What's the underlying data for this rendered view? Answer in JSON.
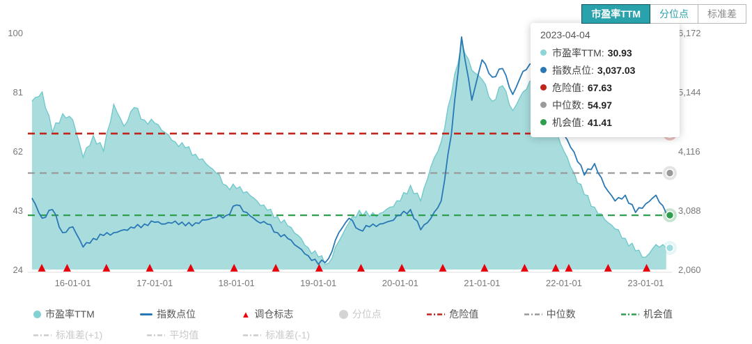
{
  "tabs": [
    {
      "label": "市盈率TTM",
      "active": true
    },
    {
      "label": "分位点",
      "active": false
    },
    {
      "label": "标准差",
      "active": false
    }
  ],
  "tooltip": {
    "date": "2023-04-04",
    "rows": [
      {
        "label": "市盈率TTM:",
        "value": "30.93",
        "color": "#8ed5d8"
      },
      {
        "label": "指数点位:",
        "value": "3,037.03",
        "color": "#2878b5"
      },
      {
        "label": "危险值:",
        "value": "67.63",
        "color": "#c0251c"
      },
      {
        "label": "中位数:",
        "value": "54.97",
        "color": "#9a9a9a"
      },
      {
        "label": "机会值:",
        "value": "41.41",
        "color": "#2f9e4f"
      }
    ]
  },
  "legend": {
    "row1": [
      {
        "label": "市盈率TTM",
        "marker": "circle",
        "color": "#84d1d4",
        "disabled": false
      },
      {
        "label": "指数点位",
        "marker": "line",
        "color": "#2878b5",
        "disabled": false
      },
      {
        "label": "调仓标志",
        "marker": "triangle",
        "color": "#e8000d",
        "disabled": false
      },
      {
        "label": "分位点",
        "marker": "circle",
        "color": "#d4d4d4",
        "disabled": true
      },
      {
        "label": "危险值",
        "marker": "dashdot",
        "color": "#c0251c",
        "disabled": false
      },
      {
        "label": "中位数",
        "marker": "dashdot",
        "color": "#9a9a9a",
        "disabled": false
      },
      {
        "label": "机会值",
        "marker": "dashdot",
        "color": "#2f9e4f",
        "disabled": false
      }
    ],
    "row2": [
      {
        "label": "标准差(+1)",
        "marker": "dashdot",
        "color": "#cccccc",
        "disabled": true
      },
      {
        "label": "平均值",
        "marker": "dashdot",
        "color": "#cccccc",
        "disabled": true
      },
      {
        "label": "标准差(-1)",
        "marker": "dashdot",
        "color": "#cccccc",
        "disabled": true
      }
    ]
  },
  "chart_data": {
    "type": "area+line",
    "x_range": [
      2015.45,
      2023.32
    ],
    "x_ticks": [
      {
        "t": 2016,
        "label": "16-01-01"
      },
      {
        "t": 2017,
        "label": "17-01-01"
      },
      {
        "t": 2018,
        "label": "18-01-01"
      },
      {
        "t": 2019,
        "label": "19-01-01"
      },
      {
        "t": 2020,
        "label": "20-01-01"
      },
      {
        "t": 2021,
        "label": "21-01-01"
      },
      {
        "t": 2022,
        "label": "22-01-01"
      },
      {
        "t": 2023,
        "label": "23-01-01"
      }
    ],
    "y_left": {
      "range": [
        24,
        100
      ],
      "ticks": [
        {
          "v": 100,
          "label": "100"
        },
        {
          "v": 81,
          "label": "81"
        },
        {
          "v": 62,
          "label": "62"
        },
        {
          "v": 43,
          "label": "43"
        },
        {
          "v": 24,
          "label": "24"
        }
      ]
    },
    "y_right": {
      "range": [
        2060,
        6172
      ],
      "ticks": [
        {
          "v": 6172,
          "label": "6,172"
        },
        {
          "v": 5144,
          "label": "5,144"
        },
        {
          "v": 4116,
          "label": "4,116"
        },
        {
          "v": 3088,
          "label": "3,088"
        },
        {
          "v": 2060,
          "label": "2,060"
        }
      ]
    },
    "x": [
      2015.5,
      2015.625,
      2015.75,
      2015.875,
      2016,
      2016.125,
      2016.25,
      2016.375,
      2016.5,
      2016.625,
      2016.75,
      2016.875,
      2017,
      2017.125,
      2017.25,
      2017.375,
      2017.5,
      2017.625,
      2017.75,
      2017.875,
      2018,
      2018.125,
      2018.25,
      2018.375,
      2018.5,
      2018.625,
      2018.75,
      2018.875,
      2019,
      2019.125,
      2019.25,
      2019.375,
      2019.5,
      2019.625,
      2019.75,
      2019.875,
      2020,
      2020.125,
      2020.25,
      2020.375,
      2020.5,
      2020.625,
      2020.75,
      2020.875,
      2021,
      2021.125,
      2021.25,
      2021.375,
      2021.5,
      2021.625,
      2021.75,
      2021.875,
      2022,
      2022.125,
      2022.25,
      2022.375,
      2022.5,
      2022.625,
      2022.75,
      2022.875,
      2023,
      2023.125,
      2023.25
    ],
    "series": [
      {
        "name": "市盈率TTM",
        "type": "area",
        "axis": "left",
        "fill": "#a9dcdd",
        "stroke": "#6cc8cb",
        "values": [
          78,
          81,
          68,
          74,
          72,
          60,
          67,
          62,
          77,
          70,
          76,
          72,
          71,
          68,
          65,
          63,
          61,
          58,
          55,
          51,
          50,
          49,
          46,
          43,
          41,
          38,
          35,
          31,
          28,
          26,
          33,
          39,
          43,
          41,
          42,
          44,
          46,
          51,
          46,
          57,
          65,
          80,
          97,
          88,
          85,
          78,
          83,
          75,
          81,
          85,
          76,
          70,
          62,
          55,
          48,
          44,
          40,
          37,
          34,
          30,
          28,
          32,
          30.93
        ]
      },
      {
        "name": "指数点位",
        "type": "line",
        "axis": "right",
        "stroke": "#2878b5",
        "values": [
          3300,
          2950,
          3100,
          2700,
          2800,
          2450,
          2600,
          2650,
          2700,
          2750,
          2780,
          2850,
          2880,
          2850,
          2900,
          2820,
          2870,
          2920,
          2960,
          3000,
          3180,
          3050,
          2900,
          2850,
          2700,
          2600,
          2450,
          2300,
          2150,
          2250,
          2700,
          2950,
          2750,
          2800,
          2850,
          2900,
          3000,
          3100,
          2750,
          2950,
          3250,
          4400,
          6100,
          5000,
          5700,
          5400,
          5550,
          5100,
          5500,
          5650,
          5450,
          4900,
          4400,
          4100,
          3700,
          3900,
          3500,
          3250,
          3350,
          3050,
          3200,
          3350,
          3037.03
        ]
      }
    ],
    "reference_lines": [
      {
        "name": "危险值",
        "axis": "left",
        "value": 67.63,
        "color": "#c0251c"
      },
      {
        "name": "中位数",
        "axis": "left",
        "value": 54.97,
        "color": "#9a9a9a"
      },
      {
        "name": "机会值",
        "axis": "left",
        "value": 41.41,
        "color": "#2f9e4f"
      }
    ],
    "rebalance_markers": {
      "name": "调仓标志",
      "color": "#e8000d",
      "times": [
        2015.62,
        2015.93,
        2016.41,
        2016.94,
        2017.44,
        2017.97,
        2018.48,
        2019.01,
        2019.52,
        2020.02,
        2020.52,
        2021.03,
        2021.52,
        2021.9,
        2022.06,
        2022.54,
        2023.01
      ]
    },
    "endpoint_markers": [
      {
        "axis": "left",
        "value": 67.63,
        "color": "#c0251c"
      },
      {
        "axis": "left",
        "value": 54.97,
        "color": "#9a9a9a"
      },
      {
        "axis": "left",
        "value": 41.41,
        "color": "#2f9e4f"
      },
      {
        "axis": "left",
        "value": 30.93,
        "color": "#9fdde0"
      }
    ]
  }
}
